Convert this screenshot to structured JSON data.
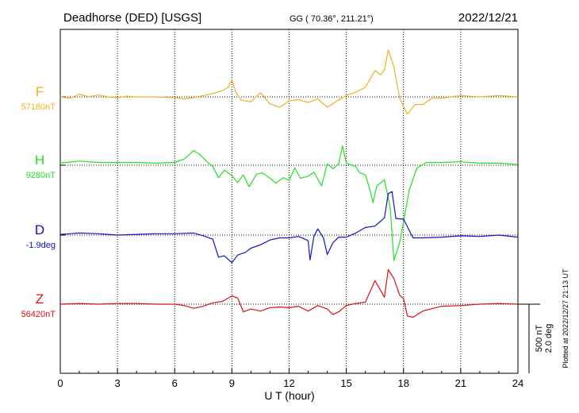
{
  "chart_data": {
    "type": "line",
    "title": {
      "station": "Deadhorse (DED)  [USGS]",
      "coords": "GG ( 70.36°, 211.21°)",
      "date": "2022/12/21"
    },
    "xlabel": "U T (hour)",
    "xlim": [
      0,
      24
    ],
    "xticks": [
      "0",
      "3",
      "6",
      "9",
      "12",
      "15",
      "18",
      "21",
      "24"
    ],
    "scale_label": {
      "line1": "500 nT",
      "line2": "2.0 deg"
    },
    "plotted_note": "Plotted at 2022/12/27 21:13 UT",
    "grid": true,
    "series": [
      {
        "name": "F",
        "baseline": "57180nT",
        "color": "#f0b020",
        "points": [
          [
            0,
            0
          ],
          [
            0.5,
            -10
          ],
          [
            1,
            20
          ],
          [
            1.5,
            0
          ],
          [
            2,
            15
          ],
          [
            2.5,
            0
          ],
          [
            3,
            -5
          ],
          [
            3.5,
            5
          ],
          [
            4,
            0
          ],
          [
            5,
            0
          ],
          [
            6,
            -5
          ],
          [
            6.5,
            -15
          ],
          [
            7,
            -5
          ],
          [
            7.5,
            10
          ],
          [
            8,
            25
          ],
          [
            8.5,
            45
          ],
          [
            8.8,
            70
          ],
          [
            9,
            125
          ],
          [
            9.2,
            35
          ],
          [
            9.5,
            -25
          ],
          [
            10,
            -35
          ],
          [
            10.5,
            30
          ],
          [
            11,
            -50
          ],
          [
            11.5,
            -75
          ],
          [
            12,
            -30
          ],
          [
            12.5,
            -20
          ],
          [
            13,
            -40
          ],
          [
            13.5,
            -15
          ],
          [
            14,
            -75
          ],
          [
            14.5,
            -30
          ],
          [
            15,
            10
          ],
          [
            15.5,
            35
          ],
          [
            16,
            70
          ],
          [
            16.5,
            190
          ],
          [
            16.8,
            160
          ],
          [
            17,
            195
          ],
          [
            17.2,
            340
          ],
          [
            17.5,
            215
          ],
          [
            17.8,
            -10
          ],
          [
            18.2,
            -125
          ],
          [
            18.6,
            -55
          ],
          [
            19,
            -55
          ],
          [
            19.5,
            -10
          ],
          [
            20,
            -10
          ],
          [
            21,
            10
          ],
          [
            22,
            0
          ],
          [
            23,
            10
          ],
          [
            24,
            0
          ]
        ]
      },
      {
        "name": "H",
        "baseline": "9280nT",
        "color": "#22e022",
        "points": [
          [
            0,
            15
          ],
          [
            1,
            30
          ],
          [
            2,
            20
          ],
          [
            3,
            20
          ],
          [
            4,
            20
          ],
          [
            5,
            15
          ],
          [
            6,
            20
          ],
          [
            6.5,
            45
          ],
          [
            7,
            105
          ],
          [
            7.3,
            80
          ],
          [
            7.7,
            25
          ],
          [
            8,
            -10
          ],
          [
            8.3,
            -90
          ],
          [
            8.6,
            -35
          ],
          [
            9,
            -75
          ],
          [
            9.3,
            -125
          ],
          [
            9.6,
            -70
          ],
          [
            9.9,
            -155
          ],
          [
            10.3,
            -65
          ],
          [
            10.6,
            -55
          ],
          [
            11,
            -95
          ],
          [
            11.3,
            -130
          ],
          [
            11.7,
            -90
          ],
          [
            12,
            -110
          ],
          [
            12.3,
            -20
          ],
          [
            12.6,
            -95
          ],
          [
            13,
            -80
          ],
          [
            13.3,
            -50
          ],
          [
            13.7,
            -150
          ],
          [
            14,
            10
          ],
          [
            14.3,
            -25
          ],
          [
            14.6,
            10
          ],
          [
            14.8,
            140
          ],
          [
            15,
            15
          ],
          [
            15.5,
            -10
          ],
          [
            15.7,
            -55
          ],
          [
            16,
            -70
          ],
          [
            16.2,
            -160
          ],
          [
            16.4,
            -270
          ],
          [
            16.6,
            -150
          ],
          [
            17,
            -105
          ],
          [
            17.3,
            -305
          ],
          [
            17.5,
            -690
          ],
          [
            17.8,
            -560
          ],
          [
            18.3,
            -180
          ],
          [
            18.7,
            -20
          ],
          [
            19.2,
            20
          ],
          [
            20,
            20
          ],
          [
            21,
            25
          ],
          [
            22,
            15
          ],
          [
            23,
            15
          ],
          [
            24,
            5
          ]
        ]
      },
      {
        "name": "D",
        "baseline": "-1.9deg",
        "color": "#1010d0",
        "points": [
          [
            0,
            5
          ],
          [
            0.5,
            10
          ],
          [
            1,
            15
          ],
          [
            2,
            10
          ],
          [
            3,
            0
          ],
          [
            4,
            5
          ],
          [
            5,
            10
          ],
          [
            6,
            10
          ],
          [
            7,
            15
          ],
          [
            7.5,
            -5
          ],
          [
            8,
            -30
          ],
          [
            8.3,
            -160
          ],
          [
            8.6,
            -150
          ],
          [
            9,
            -200
          ],
          [
            9.3,
            -145
          ],
          [
            9.7,
            -125
          ],
          [
            10,
            -95
          ],
          [
            10.5,
            -70
          ],
          [
            11,
            -35
          ],
          [
            11.5,
            -20
          ],
          [
            12,
            -20
          ],
          [
            12.5,
            -10
          ],
          [
            13,
            -40
          ],
          [
            13.1,
            -180
          ],
          [
            13.3,
            -10
          ],
          [
            13.5,
            45
          ],
          [
            13.8,
            -20
          ],
          [
            14,
            -140
          ],
          [
            14.3,
            -55
          ],
          [
            14.6,
            -15
          ],
          [
            15,
            -15
          ],
          [
            15.5,
            15
          ],
          [
            16,
            55
          ],
          [
            16.5,
            65
          ],
          [
            17,
            125
          ],
          [
            17.2,
            300
          ],
          [
            17.4,
            315
          ],
          [
            17.6,
            120
          ],
          [
            18,
            115
          ],
          [
            18.5,
            -20
          ],
          [
            19,
            -20
          ],
          [
            20,
            -15
          ],
          [
            21,
            -5
          ],
          [
            22,
            -10
          ],
          [
            23,
            0
          ],
          [
            24,
            -15
          ]
        ]
      },
      {
        "name": "Z",
        "baseline": "56420nT",
        "color": "#e01010",
        "points": [
          [
            0,
            0
          ],
          [
            1,
            5
          ],
          [
            2,
            0
          ],
          [
            3,
            5
          ],
          [
            4,
            5
          ],
          [
            5,
            0
          ],
          [
            6,
            0
          ],
          [
            6.5,
            -10
          ],
          [
            7,
            -30
          ],
          [
            7.5,
            -15
          ],
          [
            8,
            10
          ],
          [
            8.5,
            20
          ],
          [
            9,
            60
          ],
          [
            9.3,
            45
          ],
          [
            9.6,
            -55
          ],
          [
            10,
            -35
          ],
          [
            10.5,
            -50
          ],
          [
            11,
            -25
          ],
          [
            11.5,
            -20
          ],
          [
            12,
            -25
          ],
          [
            12.5,
            -15
          ],
          [
            13,
            -50
          ],
          [
            13.5,
            -10
          ],
          [
            14,
            -35
          ],
          [
            14.3,
            -75
          ],
          [
            14.6,
            -55
          ],
          [
            15,
            -10
          ],
          [
            15.5,
            5
          ],
          [
            16,
            15
          ],
          [
            16.5,
            170
          ],
          [
            16.8,
            100
          ],
          [
            17,
            50
          ],
          [
            17.2,
            250
          ],
          [
            17.5,
            185
          ],
          [
            17.8,
            65
          ],
          [
            18,
            40
          ],
          [
            18.2,
            -85
          ],
          [
            18.5,
            -95
          ],
          [
            19,
            -50
          ],
          [
            20,
            -15
          ],
          [
            21,
            -10
          ],
          [
            22,
            0
          ],
          [
            23,
            5
          ],
          [
            24,
            0
          ]
        ]
      }
    ]
  }
}
